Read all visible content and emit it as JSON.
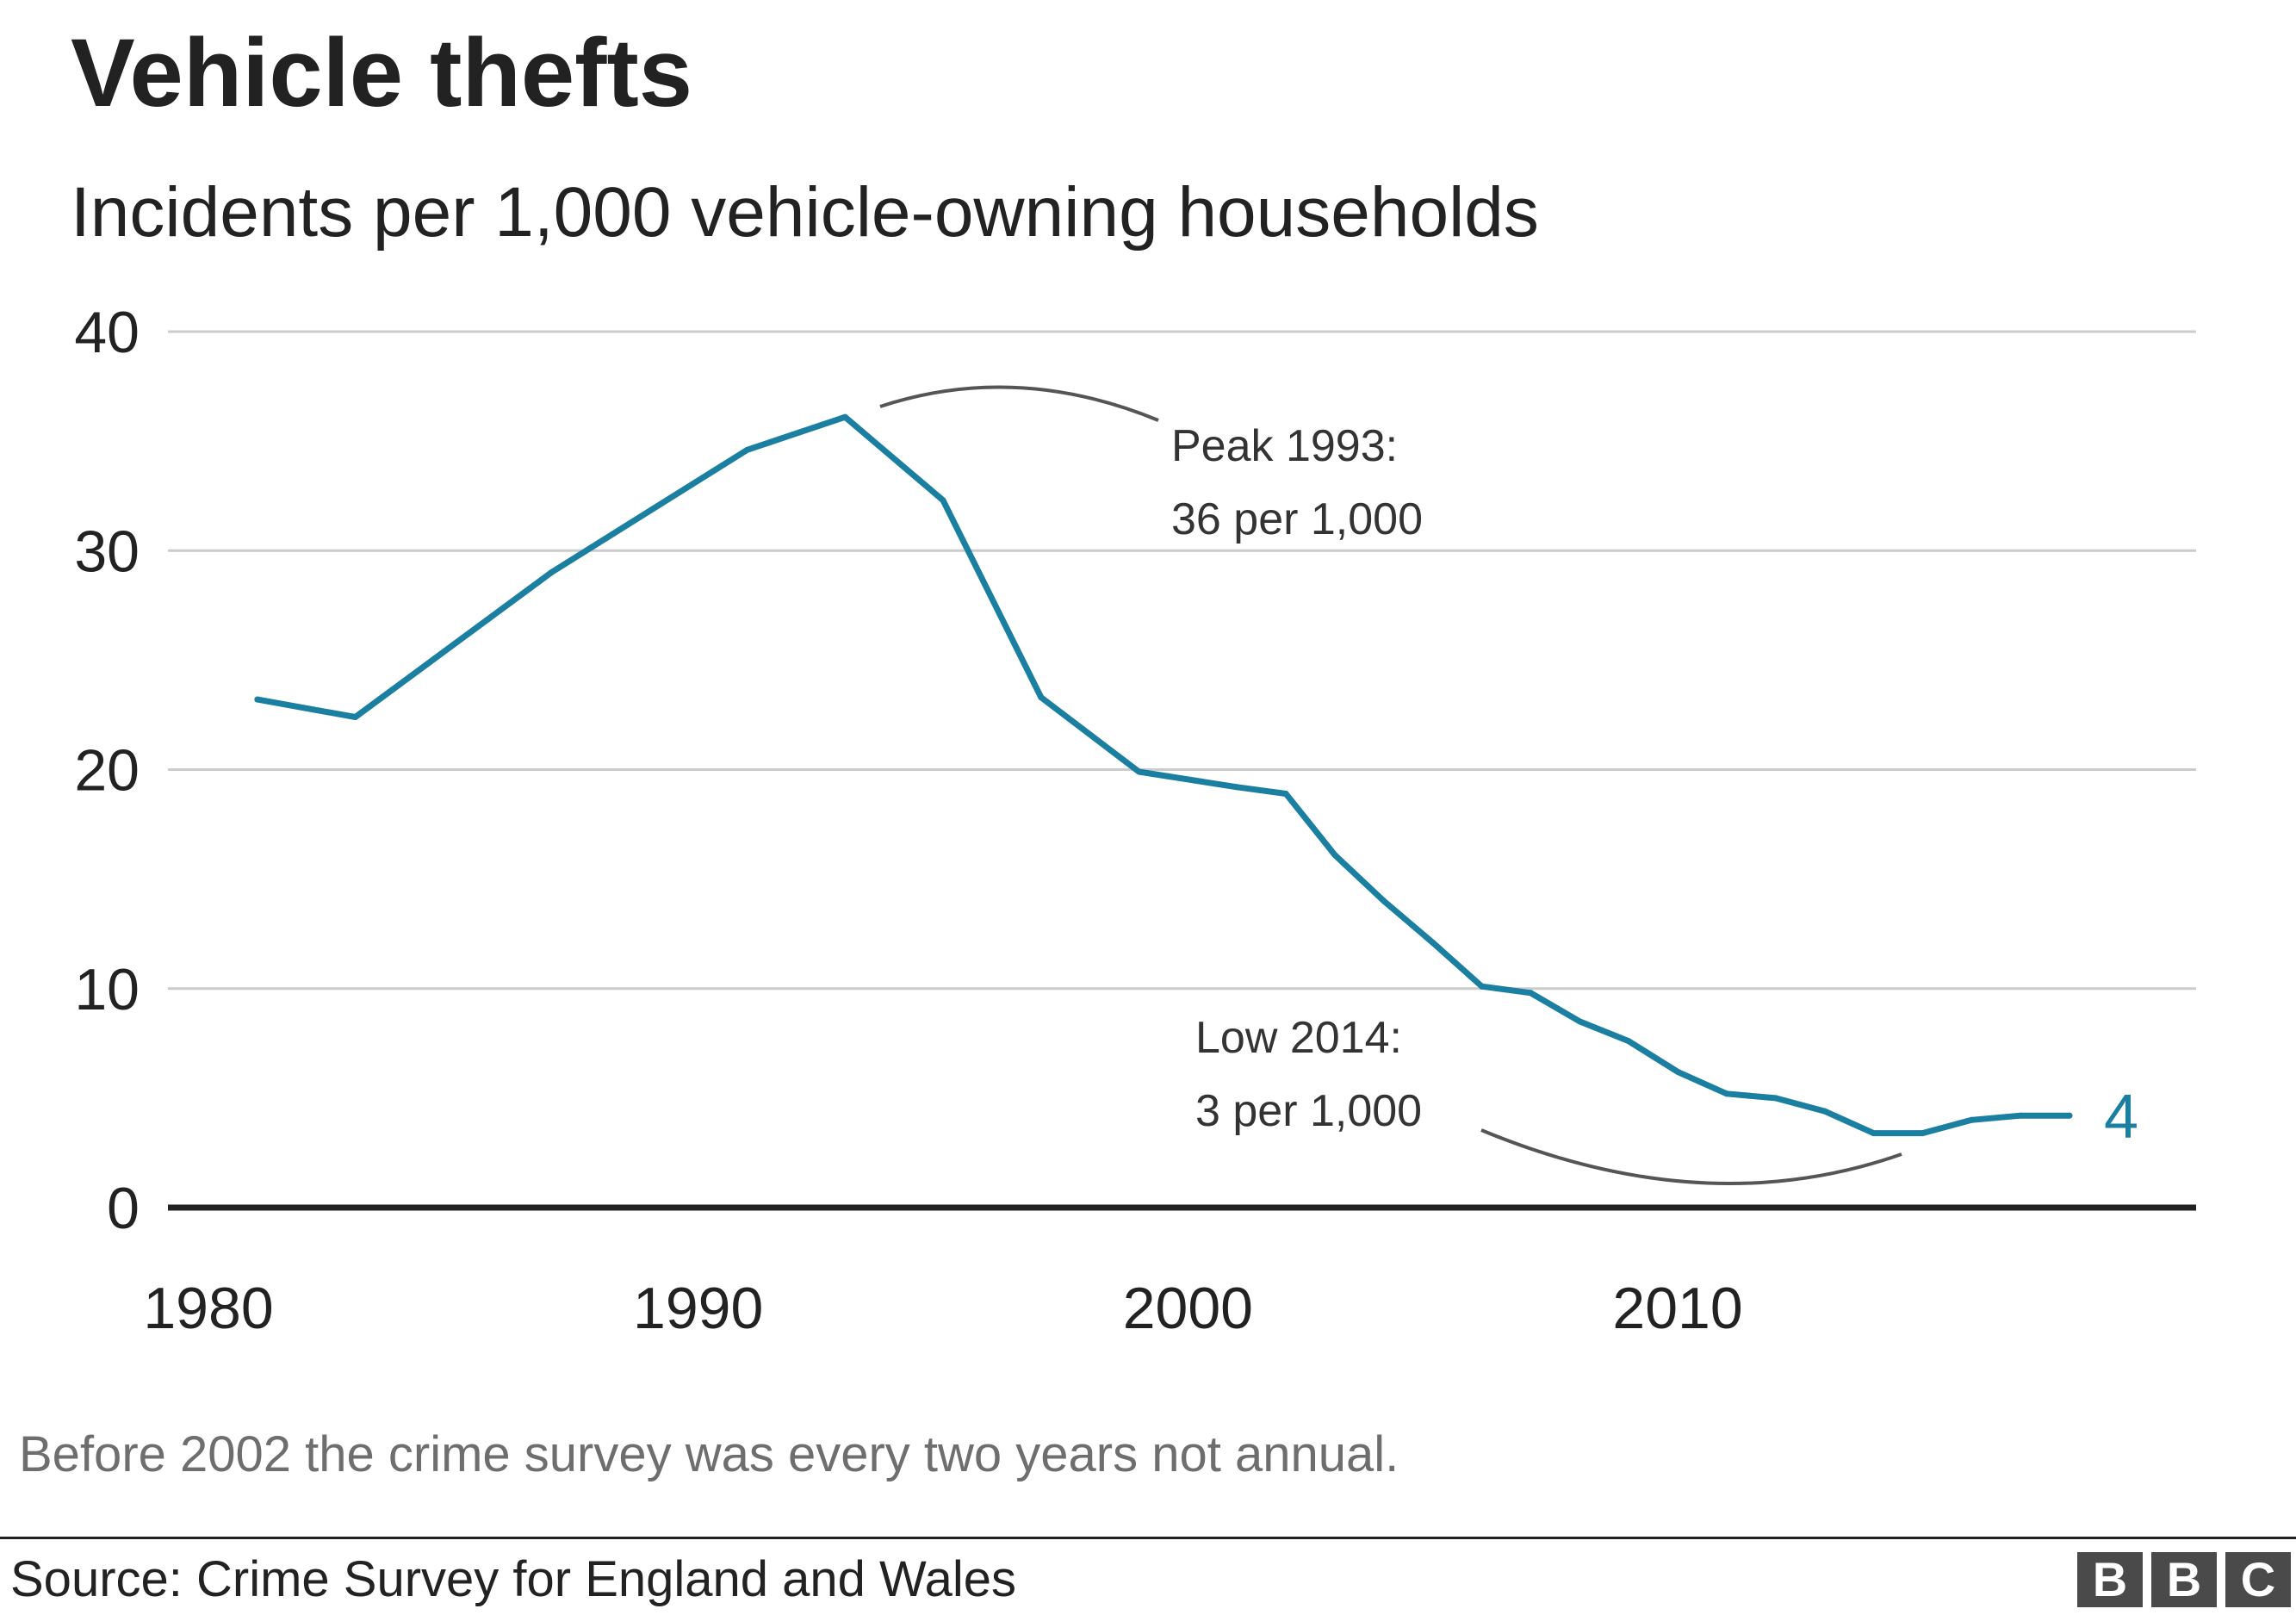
{
  "chart_data": {
    "type": "line",
    "title": "Vehicle thefts",
    "subtitle": "Incidents per 1,000 vehicle-owning households",
    "xlabel": "",
    "ylabel": "",
    "xlim": [
      1980,
      2019
    ],
    "ylim": [
      0,
      40
    ],
    "x_ticks": [
      "1980",
      "1990",
      "2000",
      "2010"
    ],
    "y_ticks": [
      "0",
      "10",
      "20",
      "30",
      "40"
    ],
    "grid": true,
    "series": [
      {
        "color": "#1a7fa0",
        "x": [
          1981,
          1983,
          1987,
          1991,
          1993,
          1995,
          1997,
          1999,
          2001,
          2002,
          2003,
          2004,
          2005,
          2006,
          2007,
          2008,
          2009,
          2010,
          2011,
          2012,
          2013,
          2014,
          2015,
          2016,
          2017,
          2018
        ],
        "y": [
          23.2,
          22.4,
          29.0,
          34.6,
          36.1,
          32.3,
          23.3,
          19.9,
          19.2,
          18.9,
          16.1,
          14.0,
          12.1,
          10.1,
          9.8,
          8.5,
          7.6,
          6.2,
          5.2,
          5.0,
          4.4,
          3.4,
          3.4,
          4.0,
          4.2,
          4.2
        ]
      }
    ],
    "end_label": "4",
    "annotations": [
      {
        "id": "peak",
        "line1": "Peak 1993:",
        "line2": "36 per 1,000"
      },
      {
        "id": "low",
        "line1": "Low 2014:",
        "line2": "3 per 1,000"
      }
    ]
  },
  "footnote": "Before 2002 the crime survey was every two years not annual.",
  "source": "Source: Crime Survey for England and Wales",
  "logo": [
    "B",
    "B",
    "C"
  ],
  "colors": {
    "line": "#1a7fa0",
    "grid": "#cccccc",
    "baseline": "#222222",
    "annotation": "#555555"
  }
}
